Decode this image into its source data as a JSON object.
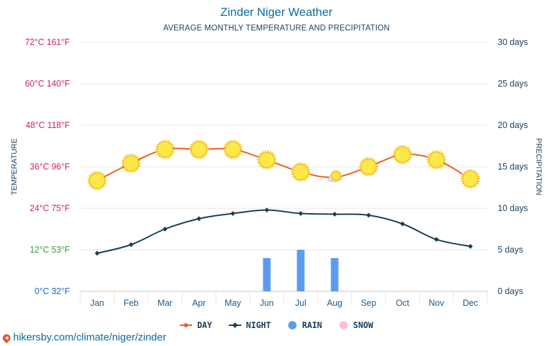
{
  "header": {
    "title": "Zinder Niger Weather",
    "subtitle": "AVERAGE MONTHLY TEMPERATURE AND PRECIPITATION"
  },
  "axes": {
    "left_title": "TEMPERATURE",
    "right_title": "PRECIPITATION"
  },
  "colors": {
    "day": "#f05a1e",
    "night": "#173d50",
    "rain": "#5b9cf0",
    "snow": "#ffc0cb",
    "grid": "#e6e6e6",
    "left_tick_colors": [
      "#1565c0",
      "#2e9e2e",
      "#d81b60",
      "#d81b60",
      "#d81b60",
      "#d81b60",
      "#d81b60"
    ],
    "right_tick": "#1a3d5c",
    "month_tick": "#1a5a8c"
  },
  "legend": {
    "day": "DAY",
    "night": "NIGHT",
    "rain": "RAIN",
    "snow": "SNOW"
  },
  "footer": {
    "url": "hikersby.com/climate/niger/zinder"
  },
  "chart_data": {
    "type": "line",
    "categories": [
      "Jan",
      "Feb",
      "Mar",
      "Apr",
      "May",
      "Jun",
      "Jul",
      "Aug",
      "Sep",
      "Oct",
      "Nov",
      "Dec"
    ],
    "series": [
      {
        "name": "DAY",
        "axis": "temperature",
        "unit": "°C",
        "values": [
          32,
          37,
          41,
          41,
          41,
          38,
          34.5,
          33,
          36,
          39.5,
          38,
          32.5
        ]
      },
      {
        "name": "NIGHT",
        "axis": "temperature",
        "unit": "°C",
        "values": [
          11,
          13.5,
          18,
          21,
          22.5,
          23.5,
          22.5,
          22.3,
          22,
          19.5,
          15,
          13
        ]
      },
      {
        "name": "RAIN",
        "axis": "precipitation",
        "unit": "days",
        "values": [
          0,
          0,
          0,
          0,
          0,
          4,
          5,
          4,
          0,
          0,
          0,
          0
        ]
      },
      {
        "name": "SNOW",
        "axis": "precipitation",
        "unit": "days",
        "values": [
          0,
          0,
          0,
          0,
          0,
          0,
          0,
          0,
          0,
          0,
          0,
          0
        ]
      }
    ],
    "weather_icons": [
      "sun",
      "sun",
      "sun",
      "sun",
      "sun",
      "sun",
      "sun",
      "sun-cloud",
      "sun",
      "sun",
      "sun",
      "sun"
    ],
    "left_ticks": [
      "0°C 32°F",
      "12°C 53°F",
      "24°C 75°F",
      "36°C 96°F",
      "48°C 118°F",
      "60°C 140°F",
      "72°C 161°F"
    ],
    "right_ticks": [
      "0 days",
      "5 days",
      "10 days",
      "15 days",
      "20 days",
      "25 days",
      "30 days"
    ],
    "temp_range": [
      0,
      72
    ],
    "precip_range": [
      0,
      30
    ],
    "grid": true,
    "legend_position": "bottom"
  }
}
